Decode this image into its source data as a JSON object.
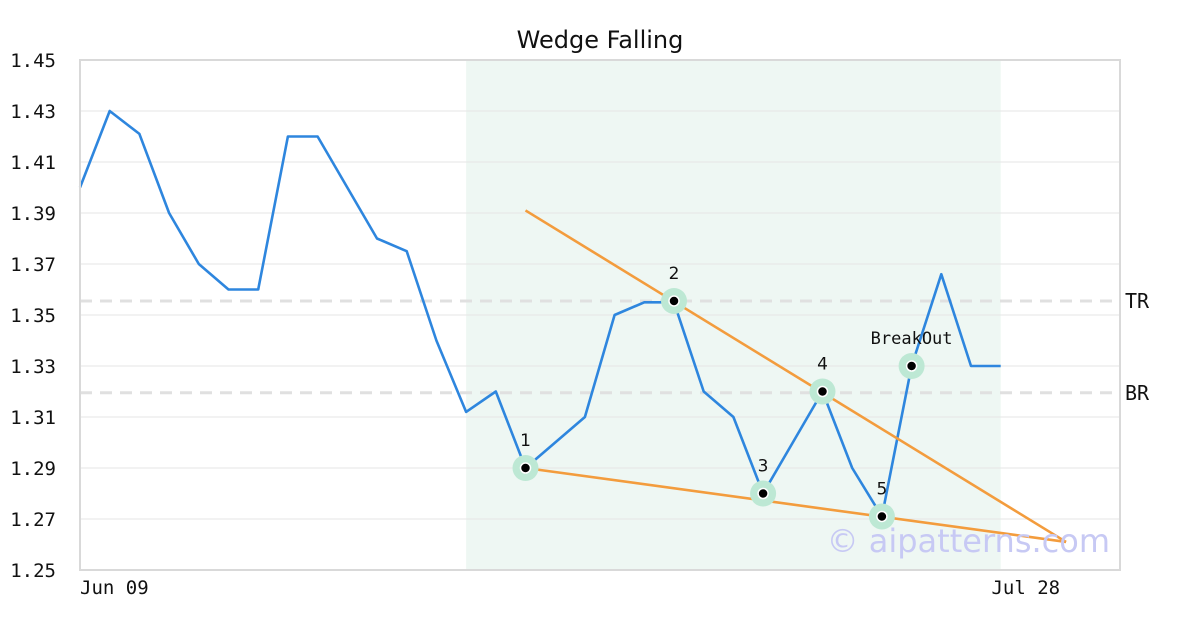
{
  "chart_data": {
    "type": "line",
    "title": "Wedge Falling",
    "xlabel": "",
    "ylabel": "",
    "ylim": [
      1.25,
      1.45
    ],
    "y_ticks": [
      "1.25",
      "1.27",
      "1.29",
      "1.31",
      "1.33",
      "1.35",
      "1.37",
      "1.39",
      "1.41",
      "1.43",
      "1.45"
    ],
    "x_tick_labels": [
      {
        "index": 0,
        "label": "Jun 09"
      },
      {
        "index": 33,
        "label": "Jul 28"
      }
    ],
    "grid": true,
    "series": [
      {
        "values": [
          1.4,
          1.43,
          1.421,
          1.39,
          1.37,
          1.36,
          1.36,
          1.42,
          1.42,
          1.4,
          1.38,
          1.375,
          1.34,
          1.312,
          1.32,
          1.29,
          1.3,
          1.31,
          1.35,
          1.355,
          1.355,
          1.32,
          1.31,
          1.28,
          1.3,
          1.32,
          1.29,
          1.271,
          1.33,
          1.366,
          1.33,
          1.33
        ],
        "color": "#2e86de"
      }
    ],
    "highlight_range": {
      "from": 13,
      "to": 31,
      "color": "#eef7f3"
    },
    "levels": [
      {
        "label": "TR",
        "value": 1.3555
      },
      {
        "label": "BR",
        "value": 1.3195
      }
    ],
    "trendlines": [
      {
        "from": [
          15,
          1.391
        ],
        "to": [
          33.2,
          1.261
        ],
        "color": "#f39c3d"
      },
      {
        "from": [
          15,
          1.29
        ],
        "to": [
          33.2,
          1.261
        ],
        "color": "#f39c3d"
      }
    ],
    "points": [
      {
        "label": "1",
        "index": 15,
        "value": 1.29
      },
      {
        "label": "2",
        "index": 20,
        "value": 1.3555
      },
      {
        "label": "3",
        "index": 23,
        "value": 1.28
      },
      {
        "label": "4",
        "index": 25,
        "value": 1.32
      },
      {
        "label": "5",
        "index": 27,
        "value": 1.271
      },
      {
        "label": "BreakOut",
        "index": 28,
        "value": 1.33
      }
    ],
    "watermark": "© aipatterns.com"
  }
}
